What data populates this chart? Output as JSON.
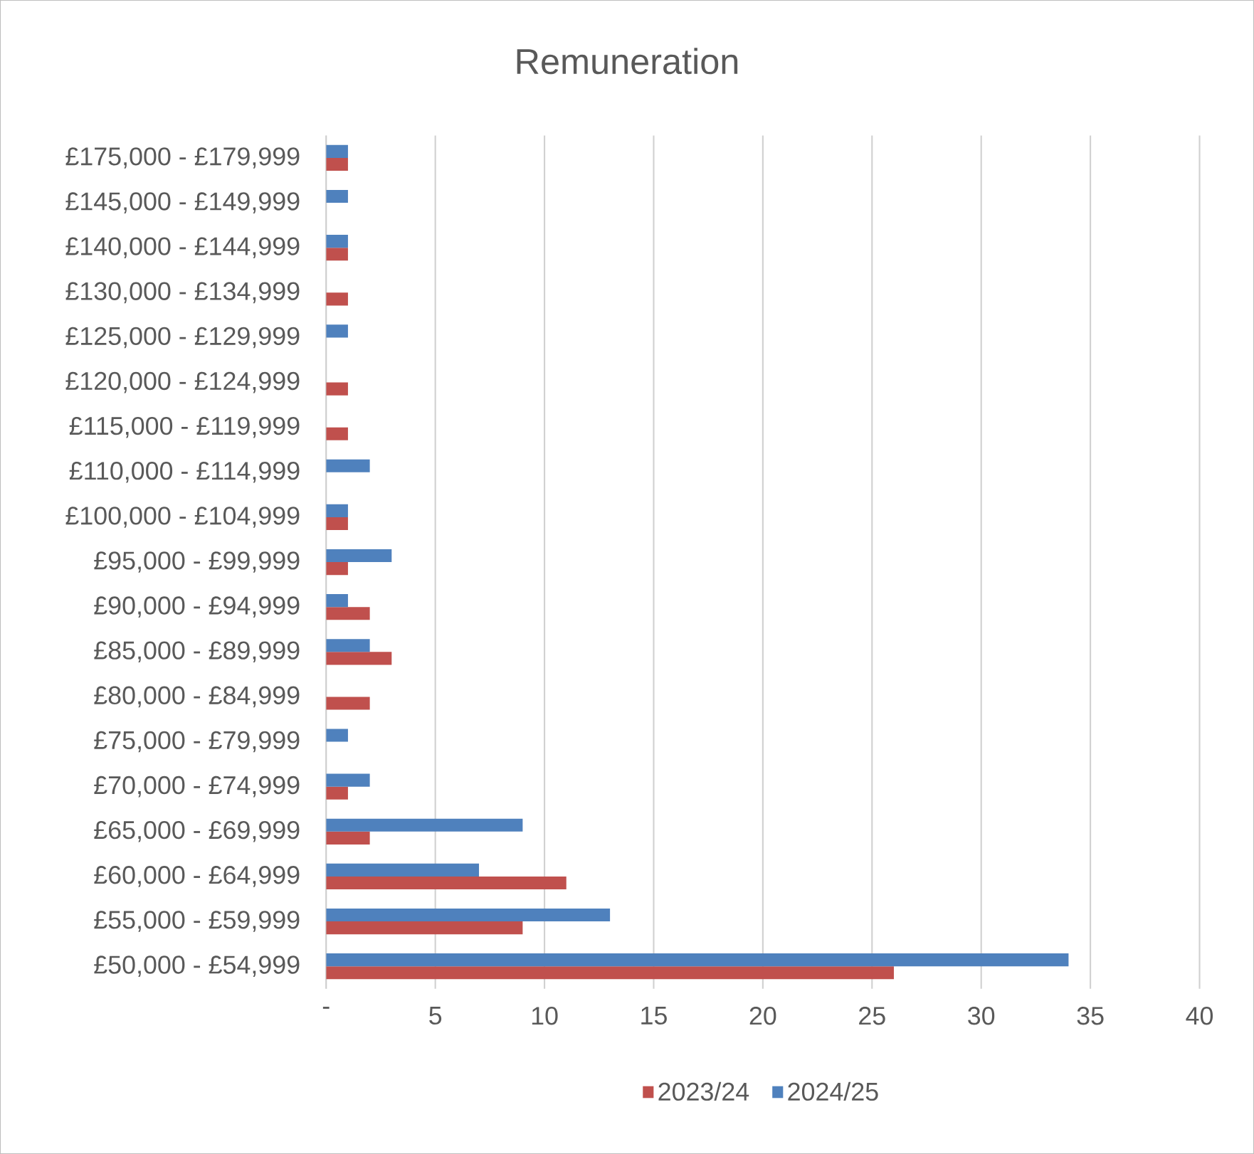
{
  "chart_data": {
    "type": "bar",
    "orientation": "horizontal",
    "title": "Remuneration",
    "categories": [
      "£175,000 - £179,999",
      "£145,000 - £149,999",
      "£140,000 - £144,999",
      "£130,000 - £134,999",
      "£125,000 - £129,999",
      "£120,000 - £124,999",
      "£115,000 - £119,999",
      "£110,000 - £114,999",
      "£100,000 - £104,999",
      "£95,000 - £99,999",
      "£90,000 - £94,999",
      "£85,000 - £89,999",
      "£80,000 - £84,999",
      "£75,000 - £79,999",
      "£70,000 - £74,999",
      "£65,000 - £69,999",
      "£60,000 - £64,999",
      "£55,000 - £59,999",
      "£50,000 - £54,999"
    ],
    "series": [
      {
        "name": "2023/24",
        "color": "#c0504d",
        "values": [
          1,
          null,
          1,
          1,
          null,
          1,
          1,
          null,
          1,
          1,
          2,
          3,
          2,
          null,
          1,
          2,
          11,
          9,
          26
        ]
      },
      {
        "name": "2024/25",
        "color": "#4f81bd",
        "values": [
          1,
          1,
          1,
          null,
          1,
          null,
          null,
          2,
          1,
          3,
          1,
          2,
          null,
          1,
          2,
          9,
          7,
          13,
          34
        ]
      }
    ],
    "xlim": [
      0,
      40
    ],
    "xticks": [
      {
        "value": 0,
        "label": "-"
      },
      5,
      10,
      15,
      20,
      25,
      30,
      35,
      40
    ],
    "grid": "x",
    "legend": "bottom"
  }
}
